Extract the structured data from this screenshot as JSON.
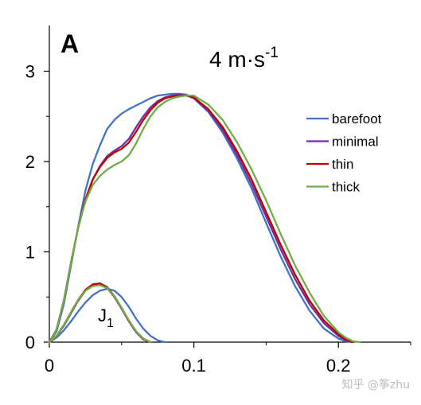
{
  "panel_label": "A",
  "watermark": "知乎 @筝zhu",
  "chart_data": {
    "type": "line",
    "title": "4 m·s",
    "title_superscript": "-1",
    "xlim": [
      0,
      0.25
    ],
    "ylim": [
      0,
      3.5
    ],
    "x_ticks": [
      0,
      0.1,
      0.2
    ],
    "x_tick_labels": [
      "0",
      "0.1",
      "0.2"
    ],
    "y_ticks": [
      0,
      1,
      2,
      3
    ],
    "y_tick_labels": [
      "0",
      "1",
      "2",
      "3"
    ],
    "legend_position": "right",
    "annotation": {
      "text": "J",
      "subscript": "1",
      "x": 0.04,
      "y": 0.3
    },
    "series": [
      {
        "name": "barefoot",
        "color": "#4472c4",
        "x": [
          0,
          0.005,
          0.01,
          0.015,
          0.02,
          0.025,
          0.03,
          0.035,
          0.04,
          0.045,
          0.05,
          0.055,
          0.06,
          0.065,
          0.07,
          0.075,
          0.08,
          0.085,
          0.09,
          0.095,
          0.1,
          0.11,
          0.12,
          0.13,
          0.14,
          0.15,
          0.16,
          0.17,
          0.18,
          0.19,
          0.2,
          0.205,
          0.21
        ],
        "y": [
          0,
          0.12,
          0.42,
          0.85,
          1.28,
          1.68,
          1.97,
          2.18,
          2.36,
          2.46,
          2.53,
          2.58,
          2.62,
          2.66,
          2.7,
          2.73,
          2.74,
          2.75,
          2.75,
          2.74,
          2.7,
          2.55,
          2.32,
          2.03,
          1.7,
          1.32,
          0.95,
          0.62,
          0.35,
          0.15,
          0.04,
          0.01,
          0
        ]
      },
      {
        "name": "minimal",
        "color": "#7030a0",
        "x": [
          0,
          0.005,
          0.01,
          0.015,
          0.02,
          0.025,
          0.03,
          0.035,
          0.04,
          0.045,
          0.05,
          0.055,
          0.06,
          0.065,
          0.07,
          0.075,
          0.08,
          0.085,
          0.09,
          0.095,
          0.1,
          0.11,
          0.12,
          0.13,
          0.14,
          0.15,
          0.16,
          0.17,
          0.18,
          0.19,
          0.2,
          0.205,
          0.21
        ],
        "y": [
          0,
          0.14,
          0.46,
          0.88,
          1.27,
          1.58,
          1.8,
          1.95,
          2.06,
          2.12,
          2.17,
          2.25,
          2.38,
          2.5,
          2.6,
          2.67,
          2.71,
          2.73,
          2.74,
          2.73,
          2.7,
          2.56,
          2.35,
          2.07,
          1.75,
          1.39,
          1.03,
          0.7,
          0.42,
          0.21,
          0.07,
          0.02,
          0
        ]
      },
      {
        "name": "thin",
        "color": "#c00000",
        "x": [
          0,
          0.005,
          0.01,
          0.015,
          0.02,
          0.025,
          0.03,
          0.035,
          0.04,
          0.045,
          0.05,
          0.055,
          0.06,
          0.065,
          0.07,
          0.075,
          0.08,
          0.085,
          0.09,
          0.095,
          0.1,
          0.11,
          0.12,
          0.13,
          0.14,
          0.15,
          0.16,
          0.17,
          0.18,
          0.19,
          0.2,
          0.205,
          0.21
        ],
        "y": [
          0,
          0.14,
          0.46,
          0.88,
          1.27,
          1.58,
          1.8,
          1.94,
          2.04,
          2.1,
          2.14,
          2.21,
          2.33,
          2.46,
          2.57,
          2.65,
          2.7,
          2.72,
          2.73,
          2.73,
          2.71,
          2.58,
          2.38,
          2.11,
          1.8,
          1.44,
          1.08,
          0.75,
          0.46,
          0.24,
          0.09,
          0.03,
          0
        ]
      },
      {
        "name": "thick",
        "color": "#70ad47",
        "x": [
          0,
          0.005,
          0.01,
          0.015,
          0.02,
          0.025,
          0.03,
          0.035,
          0.04,
          0.045,
          0.05,
          0.055,
          0.06,
          0.065,
          0.07,
          0.075,
          0.08,
          0.085,
          0.09,
          0.095,
          0.1,
          0.11,
          0.12,
          0.13,
          0.14,
          0.15,
          0.16,
          0.17,
          0.18,
          0.19,
          0.2,
          0.205,
          0.21,
          0.215
        ],
        "y": [
          0,
          0.14,
          0.46,
          0.88,
          1.27,
          1.56,
          1.74,
          1.84,
          1.91,
          1.96,
          2.0,
          2.07,
          2.2,
          2.36,
          2.5,
          2.6,
          2.66,
          2.7,
          2.72,
          2.73,
          2.73,
          2.63,
          2.46,
          2.21,
          1.91,
          1.57,
          1.2,
          0.85,
          0.55,
          0.29,
          0.11,
          0.05,
          0.01,
          0
        ]
      },
      {
        "name": "",
        "color": "#4472c4",
        "x": [
          0,
          0.005,
          0.01,
          0.015,
          0.02,
          0.025,
          0.03,
          0.035,
          0.04,
          0.045,
          0.05,
          0.055,
          0.06,
          0.065,
          0.07,
          0.075,
          0.08
        ],
        "y": [
          0,
          0.05,
          0.13,
          0.23,
          0.34,
          0.44,
          0.52,
          0.57,
          0.59,
          0.57,
          0.5,
          0.39,
          0.26,
          0.15,
          0.07,
          0.02,
          0
        ]
      },
      {
        "name": "",
        "color": "#7030a0",
        "x": [
          0,
          0.005,
          0.01,
          0.015,
          0.02,
          0.025,
          0.03,
          0.035,
          0.04,
          0.045,
          0.05,
          0.055,
          0.06,
          0.065,
          0.07
        ],
        "y": [
          0,
          0.07,
          0.18,
          0.32,
          0.46,
          0.57,
          0.63,
          0.64,
          0.6,
          0.5,
          0.37,
          0.23,
          0.11,
          0.03,
          0
        ]
      },
      {
        "name": "",
        "color": "#c00000",
        "x": [
          0,
          0.005,
          0.01,
          0.015,
          0.02,
          0.025,
          0.03,
          0.035,
          0.04,
          0.045,
          0.05,
          0.055,
          0.06,
          0.065,
          0.07
        ],
        "y": [
          0,
          0.07,
          0.19,
          0.33,
          0.47,
          0.58,
          0.64,
          0.65,
          0.61,
          0.51,
          0.38,
          0.24,
          0.12,
          0.04,
          0
        ]
      },
      {
        "name": "",
        "color": "#70ad47",
        "x": [
          0,
          0.005,
          0.01,
          0.015,
          0.02,
          0.025,
          0.03,
          0.035,
          0.04,
          0.045,
          0.05,
          0.055,
          0.06,
          0.065,
          0.07
        ],
        "y": [
          0,
          0.07,
          0.19,
          0.33,
          0.47,
          0.57,
          0.62,
          0.63,
          0.6,
          0.51,
          0.38,
          0.24,
          0.12,
          0.04,
          0
        ]
      }
    ]
  }
}
